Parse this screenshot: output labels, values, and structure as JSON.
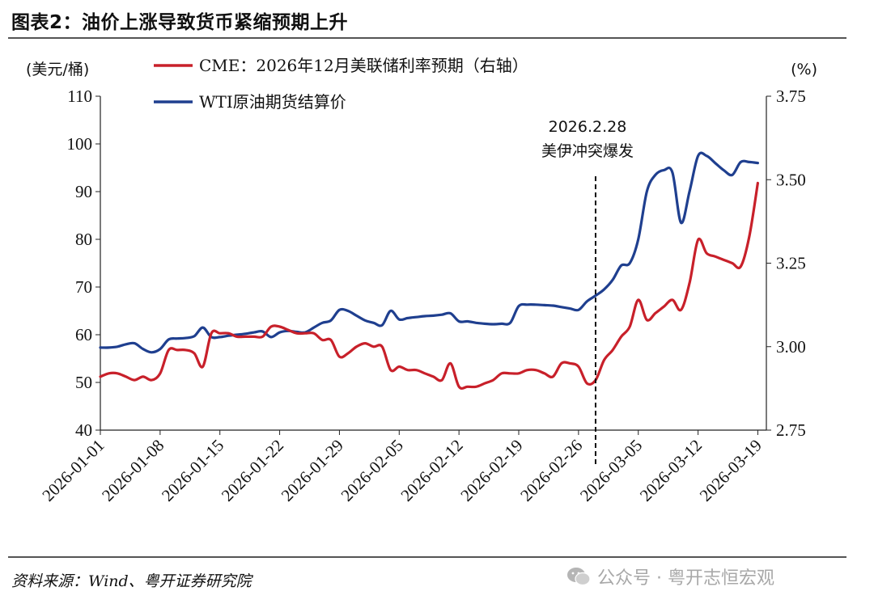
{
  "title": "图表2：油价上涨导致货币紧缩预期上升",
  "source": "资料来源：Wind、粤开证券研究院",
  "watermark": "公众号 · 粤开志恒宏观",
  "chart_data": {
    "type": "line",
    "left_axis": {
      "label": "(美元/桶)",
      "range": [
        40,
        110
      ],
      "ticks": [
        "40",
        "50",
        "60",
        "70",
        "80",
        "90",
        "100",
        "110"
      ]
    },
    "right_axis": {
      "label": "(%)",
      "range": [
        2.75,
        3.75
      ],
      "ticks": [
        "2.75",
        "3.00",
        "3.25",
        "3.50",
        "3.75"
      ]
    },
    "x_ticks": [
      "2026-01-01",
      "2026-01-08",
      "2026-01-15",
      "2026-01-22",
      "2026-01-29",
      "2026-02-05",
      "2026-02-12",
      "2026-02-19",
      "2026-02-26",
      "2026-03-05",
      "2026-03-12",
      "2026-03-19"
    ],
    "x_range": [
      "2026-01-01",
      "2026-03-20"
    ],
    "annotation": {
      "date": "2026-02-28",
      "line1": "2026.2.28",
      "line2": "美伊冲突爆发"
    },
    "legend_position": "top-left",
    "series": [
      {
        "name": "CME：2026年12月美联储利率预期（右轴）",
        "axis": "right",
        "color": "#c8202a",
        "points": [
          [
            "2026-01-01",
            2.91
          ],
          [
            "2026-01-02",
            2.92
          ],
          [
            "2026-01-03",
            2.92
          ],
          [
            "2026-01-04",
            2.91
          ],
          [
            "2026-01-05",
            2.9
          ],
          [
            "2026-01-06",
            2.91
          ],
          [
            "2026-01-07",
            2.9
          ],
          [
            "2026-01-08",
            2.92
          ],
          [
            "2026-01-09",
            2.99
          ],
          [
            "2026-01-10",
            2.99
          ],
          [
            "2026-01-11",
            2.99
          ],
          [
            "2026-01-12",
            2.98
          ],
          [
            "2026-01-13",
            2.94
          ],
          [
            "2026-01-14",
            3.04
          ],
          [
            "2026-01-15",
            3.04
          ],
          [
            "2026-01-16",
            3.04
          ],
          [
            "2026-01-17",
            3.03
          ],
          [
            "2026-01-18",
            3.03
          ],
          [
            "2026-01-19",
            3.03
          ],
          [
            "2026-01-20",
            3.03
          ],
          [
            "2026-01-21",
            3.06
          ],
          [
            "2026-01-22",
            3.06
          ],
          [
            "2026-01-23",
            3.05
          ],
          [
            "2026-01-24",
            3.04
          ],
          [
            "2026-01-25",
            3.04
          ],
          [
            "2026-01-26",
            3.04
          ],
          [
            "2026-01-27",
            3.02
          ],
          [
            "2026-01-28",
            3.02
          ],
          [
            "2026-01-29",
            2.97
          ],
          [
            "2026-01-30",
            2.98
          ],
          [
            "2026-01-31",
            3.0
          ],
          [
            "2026-02-01",
            3.01
          ],
          [
            "2026-02-02",
            3.0
          ],
          [
            "2026-02-03",
            3.0
          ],
          [
            "2026-02-04",
            2.93
          ],
          [
            "2026-02-05",
            2.94
          ],
          [
            "2026-02-06",
            2.93
          ],
          [
            "2026-02-07",
            2.93
          ],
          [
            "2026-02-08",
            2.92
          ],
          [
            "2026-02-09",
            2.91
          ],
          [
            "2026-02-10",
            2.9
          ],
          [
            "2026-02-11",
            2.95
          ],
          [
            "2026-02-12",
            2.88
          ],
          [
            "2026-02-13",
            2.88
          ],
          [
            "2026-02-14",
            2.88
          ],
          [
            "2026-02-15",
            2.89
          ],
          [
            "2026-02-16",
            2.9
          ],
          [
            "2026-02-17",
            2.92
          ],
          [
            "2026-02-18",
            2.92
          ],
          [
            "2026-02-19",
            2.92
          ],
          [
            "2026-02-20",
            2.93
          ],
          [
            "2026-02-21",
            2.93
          ],
          [
            "2026-02-22",
            2.92
          ],
          [
            "2026-02-23",
            2.91
          ],
          [
            "2026-02-24",
            2.95
          ],
          [
            "2026-02-25",
            2.95
          ],
          [
            "2026-02-26",
            2.94
          ],
          [
            "2026-02-27",
            2.89
          ],
          [
            "2026-02-28",
            2.9
          ],
          [
            "2026-03-01",
            2.96
          ],
          [
            "2026-03-02",
            2.99
          ],
          [
            "2026-03-03",
            3.03
          ],
          [
            "2026-03-04",
            3.06
          ],
          [
            "2026-03-05",
            3.14
          ],
          [
            "2026-03-06",
            3.08
          ],
          [
            "2026-03-07",
            3.1
          ],
          [
            "2026-03-08",
            3.12
          ],
          [
            "2026-03-09",
            3.14
          ],
          [
            "2026-03-10",
            3.11
          ],
          [
            "2026-03-11",
            3.19
          ],
          [
            "2026-03-12",
            3.32
          ],
          [
            "2026-03-13",
            3.28
          ],
          [
            "2026-03-14",
            3.27
          ],
          [
            "2026-03-15",
            3.26
          ],
          [
            "2026-03-16",
            3.25
          ],
          [
            "2026-03-17",
            3.24
          ],
          [
            "2026-03-18",
            3.33
          ],
          [
            "2026-03-19",
            3.49
          ]
        ]
      },
      {
        "name": "WTI原油期货结算价",
        "axis": "left",
        "color": "#1f3f8f",
        "points": [
          [
            "2026-01-01",
            57.3
          ],
          [
            "2026-01-02",
            57.3
          ],
          [
            "2026-01-03",
            57.5
          ],
          [
            "2026-01-04",
            58.0
          ],
          [
            "2026-01-05",
            58.2
          ],
          [
            "2026-01-06",
            57.0
          ],
          [
            "2026-01-07",
            56.3
          ],
          [
            "2026-01-08",
            57.0
          ],
          [
            "2026-01-09",
            59.0
          ],
          [
            "2026-01-10",
            59.2
          ],
          [
            "2026-01-11",
            59.3
          ],
          [
            "2026-01-12",
            59.7
          ],
          [
            "2026-01-13",
            61.5
          ],
          [
            "2026-01-14",
            59.5
          ],
          [
            "2026-01-15",
            59.5
          ],
          [
            "2026-01-16",
            59.8
          ],
          [
            "2026-01-17",
            60.0
          ],
          [
            "2026-01-18",
            60.2
          ],
          [
            "2026-01-19",
            60.5
          ],
          [
            "2026-01-20",
            60.7
          ],
          [
            "2026-01-21",
            59.5
          ],
          [
            "2026-01-22",
            60.5
          ],
          [
            "2026-01-23",
            60.8
          ],
          [
            "2026-01-24",
            60.6
          ],
          [
            "2026-01-25",
            60.5
          ],
          [
            "2026-01-26",
            61.5
          ],
          [
            "2026-01-27",
            62.5
          ],
          [
            "2026-01-28",
            63.0
          ],
          [
            "2026-01-29",
            65.2
          ],
          [
            "2026-01-30",
            65.0
          ],
          [
            "2026-01-31",
            64.0
          ],
          [
            "2026-02-01",
            63.0
          ],
          [
            "2026-02-02",
            62.5
          ],
          [
            "2026-02-03",
            62.0
          ],
          [
            "2026-02-04",
            65.0
          ],
          [
            "2026-02-05",
            63.2
          ],
          [
            "2026-02-06",
            63.5
          ],
          [
            "2026-02-07",
            63.7
          ],
          [
            "2026-02-08",
            63.9
          ],
          [
            "2026-02-09",
            64.0
          ],
          [
            "2026-02-10",
            64.2
          ],
          [
            "2026-02-11",
            64.5
          ],
          [
            "2026-02-12",
            62.8
          ],
          [
            "2026-02-13",
            62.8
          ],
          [
            "2026-02-14",
            62.5
          ],
          [
            "2026-02-15",
            62.3
          ],
          [
            "2026-02-16",
            62.2
          ],
          [
            "2026-02-17",
            62.3
          ],
          [
            "2026-02-18",
            62.5
          ],
          [
            "2026-02-19",
            66.0
          ],
          [
            "2026-02-20",
            66.3
          ],
          [
            "2026-02-21",
            66.3
          ],
          [
            "2026-02-22",
            66.2
          ],
          [
            "2026-02-23",
            66.1
          ],
          [
            "2026-02-24",
            65.8
          ],
          [
            "2026-02-25",
            65.5
          ],
          [
            "2026-02-26",
            65.2
          ],
          [
            "2026-02-27",
            67.0
          ],
          [
            "2026-02-28",
            68.2
          ],
          [
            "2026-03-01",
            69.5
          ],
          [
            "2026-03-02",
            71.5
          ],
          [
            "2026-03-03",
            74.5
          ],
          [
            "2026-03-04",
            75.0
          ],
          [
            "2026-03-05",
            80.0
          ],
          [
            "2026-03-06",
            90.0
          ],
          [
            "2026-03-07",
            93.5
          ],
          [
            "2026-03-08",
            94.5
          ],
          [
            "2026-03-09",
            94.0
          ],
          [
            "2026-03-10",
            83.5
          ],
          [
            "2026-03-11",
            90.0
          ],
          [
            "2026-03-12",
            97.5
          ],
          [
            "2026-03-13",
            97.5
          ],
          [
            "2026-03-14",
            96.0
          ],
          [
            "2026-03-15",
            94.5
          ],
          [
            "2026-03-16",
            93.5
          ],
          [
            "2026-03-17",
            96.2
          ],
          [
            "2026-03-18",
            96.2
          ],
          [
            "2026-03-19",
            96.0
          ]
        ]
      }
    ]
  }
}
